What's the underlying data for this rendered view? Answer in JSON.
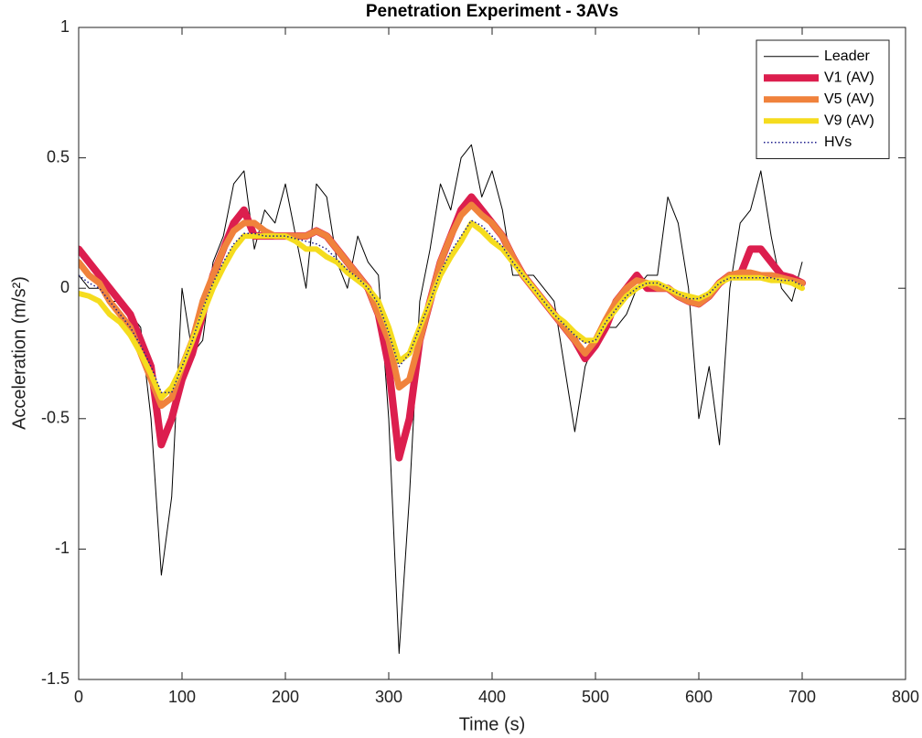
{
  "chart_data": {
    "type": "line",
    "title": "Penetration Experiment - 3AVs",
    "x_label": "Time (s)",
    "y_label": "Acceleration (m/s²)",
    "x": [
      0,
      10,
      20,
      30,
      40,
      50,
      60,
      70,
      80,
      90,
      100,
      110,
      120,
      130,
      140,
      150,
      160,
      170,
      180,
      190,
      200,
      210,
      220,
      230,
      240,
      250,
      260,
      270,
      280,
      290,
      300,
      310,
      320,
      330,
      340,
      350,
      360,
      370,
      380,
      390,
      400,
      410,
      420,
      430,
      440,
      450,
      460,
      470,
      480,
      490,
      500,
      510,
      520,
      530,
      540,
      550,
      560,
      570,
      580,
      590,
      600,
      610,
      620,
      630,
      640,
      650,
      660,
      670,
      680,
      690,
      700
    ],
    "series": [
      {
        "name": "Leader",
        "color": "#000000",
        "width": 1,
        "style": "solid",
        "values": [
          0.05,
          0.0,
          0.0,
          -0.05,
          -0.05,
          -0.1,
          -0.15,
          -0.5,
          -1.1,
          -0.8,
          0.0,
          -0.25,
          -0.2,
          0.1,
          0.2,
          0.4,
          0.45,
          0.15,
          0.3,
          0.25,
          0.4,
          0.2,
          0.0,
          0.4,
          0.35,
          0.1,
          0.0,
          0.2,
          0.1,
          0.05,
          -0.5,
          -1.4,
          -0.8,
          -0.05,
          0.15,
          0.4,
          0.3,
          0.5,
          0.55,
          0.35,
          0.45,
          0.3,
          0.05,
          0.05,
          0.05,
          0.0,
          -0.05,
          -0.3,
          -0.55,
          -0.3,
          -0.2,
          -0.15,
          -0.15,
          -0.1,
          0.0,
          0.05,
          0.05,
          0.35,
          0.25,
          0.0,
          -0.5,
          -0.3,
          -0.6,
          0.0,
          0.25,
          0.3,
          0.45,
          0.2,
          0.0,
          -0.05,
          0.1
        ]
      },
      {
        "name": "V1 (AV)",
        "color": "#dc1e4e",
        "width": 8,
        "style": "solid",
        "values": [
          0.15,
          0.1,
          0.05,
          0.0,
          -0.05,
          -0.1,
          -0.2,
          -0.3,
          -0.6,
          -0.5,
          -0.35,
          -0.25,
          -0.1,
          0.05,
          0.15,
          0.25,
          0.3,
          0.2,
          0.2,
          0.2,
          0.2,
          0.2,
          0.2,
          0.22,
          0.2,
          0.15,
          0.1,
          0.05,
          0.0,
          -0.1,
          -0.3,
          -0.65,
          -0.5,
          -0.2,
          -0.05,
          0.1,
          0.2,
          0.3,
          0.35,
          0.3,
          0.25,
          0.2,
          0.12,
          0.05,
          0.0,
          -0.05,
          -0.1,
          -0.15,
          -0.2,
          -0.27,
          -0.22,
          -0.15,
          -0.05,
          0.0,
          0.05,
          0.0,
          0.0,
          0.0,
          -0.03,
          -0.05,
          -0.06,
          -0.03,
          0.02,
          0.05,
          0.05,
          0.15,
          0.15,
          0.1,
          0.05,
          0.04,
          0.02
        ]
      },
      {
        "name": "V5 (AV)",
        "color": "#f0823c",
        "width": 7,
        "style": "solid",
        "values": [
          0.1,
          0.05,
          0.02,
          -0.05,
          -0.1,
          -0.15,
          -0.25,
          -0.35,
          -0.45,
          -0.42,
          -0.3,
          -0.2,
          -0.05,
          0.05,
          0.15,
          0.22,
          0.25,
          0.25,
          0.22,
          0.2,
          0.2,
          0.2,
          0.2,
          0.22,
          0.2,
          0.15,
          0.1,
          0.05,
          0.0,
          -0.1,
          -0.2,
          -0.38,
          -0.35,
          -0.2,
          -0.05,
          0.1,
          0.2,
          0.28,
          0.32,
          0.28,
          0.25,
          0.2,
          0.12,
          0.05,
          0.0,
          -0.05,
          -0.1,
          -0.15,
          -0.2,
          -0.25,
          -0.2,
          -0.12,
          -0.05,
          0.0,
          0.03,
          0.02,
          0.0,
          0.0,
          -0.03,
          -0.05,
          -0.06,
          -0.03,
          0.02,
          0.05,
          0.06,
          0.06,
          0.05,
          0.05,
          0.04,
          0.03,
          0.02
        ]
      },
      {
        "name": "V9 (AV)",
        "color": "#f5dc1e",
        "width": 6,
        "style": "solid",
        "values": [
          -0.02,
          -0.03,
          -0.05,
          -0.1,
          -0.13,
          -0.18,
          -0.25,
          -0.33,
          -0.42,
          -0.38,
          -0.3,
          -0.2,
          -0.1,
          0.0,
          0.08,
          0.15,
          0.2,
          0.2,
          0.2,
          0.2,
          0.2,
          0.18,
          0.15,
          0.15,
          0.12,
          0.1,
          0.06,
          0.03,
          0.0,
          -0.05,
          -0.15,
          -0.28,
          -0.25,
          -0.15,
          -0.05,
          0.05,
          0.12,
          0.18,
          0.25,
          0.22,
          0.18,
          0.15,
          0.1,
          0.05,
          0.0,
          -0.05,
          -0.1,
          -0.13,
          -0.17,
          -0.2,
          -0.2,
          -0.13,
          -0.08,
          -0.03,
          0.0,
          0.02,
          0.02,
          0.0,
          -0.02,
          -0.03,
          -0.04,
          -0.02,
          0.02,
          0.04,
          0.04,
          0.04,
          0.04,
          0.03,
          0.03,
          0.02,
          0.0
        ]
      },
      {
        "name": "HVs",
        "color": "#1e1e8c",
        "width": 1.5,
        "style": "dotted",
        "values": [
          0.05,
          0.02,
          0.0,
          -0.05,
          -0.1,
          -0.15,
          -0.22,
          -0.3,
          -0.4,
          -0.4,
          -0.3,
          -0.2,
          -0.08,
          0.02,
          0.1,
          0.17,
          0.21,
          0.21,
          0.2,
          0.2,
          0.2,
          0.19,
          0.18,
          0.17,
          0.15,
          0.11,
          0.07,
          0.04,
          0.0,
          -0.06,
          -0.17,
          -0.3,
          -0.25,
          -0.15,
          -0.05,
          0.06,
          0.14,
          0.2,
          0.26,
          0.24,
          0.2,
          0.16,
          0.1,
          0.05,
          0.0,
          -0.05,
          -0.1,
          -0.14,
          -0.18,
          -0.21,
          -0.2,
          -0.13,
          -0.08,
          -0.03,
          0.0,
          0.02,
          0.02,
          0.0,
          -0.02,
          -0.04,
          -0.04,
          -0.02,
          0.02,
          0.04,
          0.04,
          0.04,
          0.04,
          0.04,
          0.03,
          0.03,
          0.01
        ]
      }
    ],
    "xlim": [
      0,
      800
    ],
    "xticks": [
      0,
      100,
      200,
      300,
      400,
      500,
      600,
      700,
      800
    ],
    "ylim": [
      -1.5,
      1
    ],
    "yticks": [
      -1.5,
      -1,
      -0.5,
      0,
      0.5,
      1
    ],
    "grid": false,
    "legend": "upper right"
  }
}
